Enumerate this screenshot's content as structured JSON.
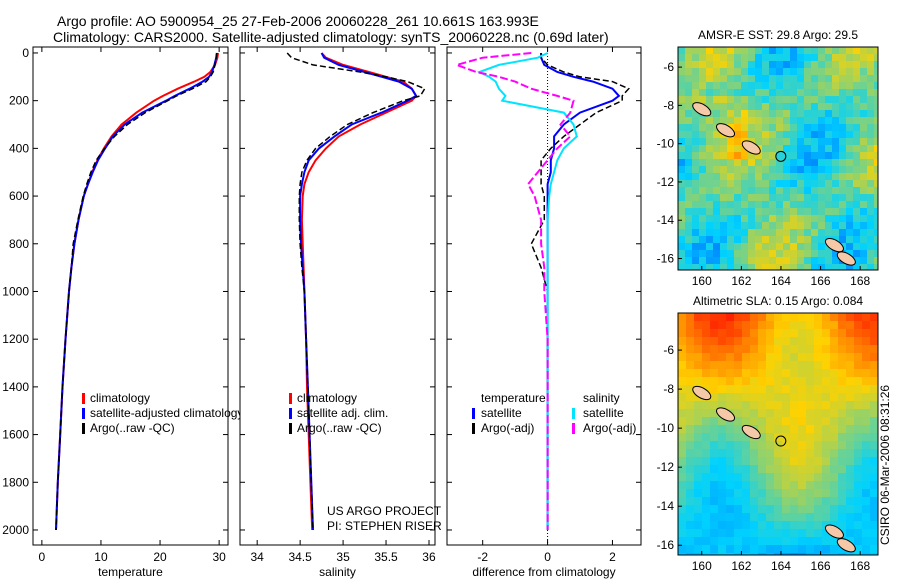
{
  "title": {
    "line1": "Argo profile: AO 5900954_25 27-Feb-2006 20060228_261 10.661S 163.993E",
    "line2": "Climatology: CARS2000. Satellite-adjusted climatology: synTS_20060228.nc (0.69d later)"
  },
  "footer": {
    "stamp": "CSIRO 06-Mar-2006 08:31:26",
    "project": "US ARGO PROJECT",
    "pi": "PI: STEPHEN RISER"
  },
  "colors": {
    "climatology": "#ff0000",
    "satellite": "#0000ff",
    "argo": "#000000",
    "sal_satellite": "#00e5ff",
    "sal_argo": "#ff00ff"
  },
  "chart_data": [
    {
      "type": "line",
      "title": "",
      "xlabel": "temperature",
      "ylabel": "",
      "xlim": [
        -1.5,
        31.5
      ],
      "ylim": [
        2063,
        -25
      ],
      "xticks": [
        0,
        10,
        20,
        30
      ],
      "yticks": [
        0,
        200,
        400,
        600,
        800,
        1000,
        1200,
        1400,
        1600,
        1800,
        2000
      ],
      "legend": [
        "climatology",
        "satellite-adjusted climatology",
        "Argo(..raw -QC)"
      ],
      "depth": [
        0,
        20,
        50,
        80,
        100,
        120,
        150,
        180,
        200,
        250,
        300,
        350,
        400,
        450,
        500,
        550,
        600,
        700,
        800,
        900,
        1000,
        1200,
        1400,
        1600,
        1800,
        2000
      ],
      "series": [
        {
          "name": "climatology",
          "values": [
            29.8,
            29.7,
            29.3,
            28.5,
            27.5,
            25.8,
            23,
            20.5,
            19,
            16,
            13.5,
            11.8,
            10.5,
            9.4,
            8.5,
            7.8,
            7.1,
            6.2,
            5.5,
            5,
            4.6,
            4,
            3.5,
            3.1,
            2.7,
            2.4
          ]
        },
        {
          "name": "satellite-adjusted climatology",
          "values": [
            29.6,
            29.5,
            29.2,
            28.8,
            28.3,
            27.2,
            25,
            22.5,
            21,
            17,
            14,
            12,
            10.7,
            9.5,
            8.6,
            7.8,
            7.1,
            6.2,
            5.5,
            5,
            4.6,
            4,
            3.5,
            3.1,
            2.7,
            2.4
          ]
        },
        {
          "name": "Argo(..raw -QC)",
          "values": [
            29.6,
            29.5,
            29.3,
            29,
            28.5,
            27.8,
            25.5,
            22.8,
            21.3,
            17.5,
            14.5,
            12.3,
            10.6,
            9.2,
            8.3,
            7.6,
            7,
            6.1,
            5.3,
            5,
            4.6,
            4,
            3.5,
            3.1,
            2.7,
            2.4
          ]
        }
      ]
    },
    {
      "type": "line",
      "xlabel": "salinity",
      "xlim": [
        33.8,
        36.07
      ],
      "ylim": [
        2063,
        -25
      ],
      "xticks": [
        34,
        34.5,
        35,
        35.5,
        36
      ],
      "legend": [
        "climatology",
        "satellite adj. clim.",
        "Argo(..raw -QC)"
      ],
      "depth": [
        0,
        20,
        50,
        80,
        100,
        120,
        150,
        180,
        200,
        250,
        300,
        350,
        400,
        450,
        500,
        550,
        600,
        700,
        800,
        900,
        1000,
        1200,
        1400,
        1600,
        1800,
        2000
      ],
      "series": [
        {
          "name": "climatology",
          "values": [
            34.75,
            34.8,
            35.0,
            35.3,
            35.5,
            35.7,
            35.8,
            35.85,
            35.8,
            35.5,
            35.2,
            34.95,
            34.8,
            34.68,
            34.6,
            34.55,
            34.53,
            34.52,
            34.53,
            34.54,
            34.55,
            34.57,
            34.58,
            34.6,
            34.62,
            34.64
          ]
        },
        {
          "name": "satellite adj. clim.",
          "values": [
            34.75,
            34.78,
            34.95,
            35.25,
            35.45,
            35.65,
            35.8,
            35.85,
            35.75,
            35.45,
            35.1,
            34.9,
            34.72,
            34.6,
            34.55,
            34.52,
            34.5,
            34.5,
            34.51,
            34.53,
            34.55,
            34.57,
            34.59,
            34.61,
            34.63,
            34.65
          ]
        },
        {
          "name": "Argo(..raw -QC)",
          "values": [
            34.35,
            34.4,
            34.65,
            35.2,
            35.5,
            35.75,
            35.95,
            35.9,
            35.7,
            35.35,
            35.05,
            34.85,
            34.68,
            34.58,
            34.52,
            34.5,
            34.49,
            34.49,
            34.5,
            34.52,
            34.55,
            34.57,
            34.59,
            34.61,
            34.63,
            34.65
          ]
        }
      ]
    },
    {
      "type": "line",
      "xlabel": "difference from climatology",
      "xlim": [
        -3.1,
        2.88
      ],
      "ylim": [
        2063,
        -25
      ],
      "xticks": [
        -2,
        0,
        2
      ],
      "legend_headers": [
        "temperature",
        "salinity"
      ],
      "legend": [
        "satellite",
        "Argo(-adj)",
        "satellite",
        "Argo(-adj)"
      ],
      "depth": [
        0,
        20,
        50,
        80,
        100,
        120,
        150,
        180,
        200,
        250,
        300,
        350,
        400,
        450,
        500,
        550,
        600,
        700,
        800,
        900,
        1000,
        1200,
        1400,
        1600,
        1800,
        2000
      ],
      "series": [
        {
          "name": "temperature satellite",
          "values": [
            -0.2,
            -0.2,
            -0.1,
            0.3,
            0.8,
            1.4,
            2.0,
            2.2,
            2.0,
            1.0,
            0.5,
            0.2,
            0.2,
            0.1,
            0.1,
            0,
            0,
            0,
            0,
            0,
            0,
            0,
            0,
            0,
            0,
            0
          ]
        },
        {
          "name": "temperature Argo(-adj)",
          "values": [
            -0.2,
            -0.2,
            0,
            0.5,
            1.0,
            2.0,
            2.5,
            2.3,
            2.3,
            1.5,
            1,
            0.5,
            0.1,
            -0.2,
            -0.2,
            -0.2,
            -0.1,
            -0.1,
            -0.5,
            -0.2,
            0,
            0,
            0,
            0,
            0,
            0
          ]
        },
        {
          "name": "salinity satellite",
          "values": [
            0,
            -0.3,
            -1.5,
            -2.1,
            -1.8,
            -1.6,
            -1.5,
            -1.3,
            -1.4,
            0.5,
            0.8,
            0.9,
            0.5,
            0.3,
            0.2,
            0.1,
            0.05,
            0,
            0,
            0,
            0,
            0,
            0,
            0,
            0,
            0
          ]
        },
        {
          "name": "salinity Argo(-adj)",
          "values": [
            -0.5,
            -2.0,
            -2.8,
            -2.2,
            -1.5,
            -1.0,
            -0.5,
            0.3,
            0.8,
            0.7,
            0.4,
            0.7,
            0.3,
            0,
            -0.3,
            -0.6,
            -0.4,
            -0.2,
            -0.2,
            -0.1,
            -0.1,
            0,
            0,
            0,
            0,
            0
          ]
        }
      ]
    },
    {
      "type": "heatmap",
      "title": "AMSR-E SST: 29.8 Argo: 29.5",
      "xlim": [
        158.8,
        168.9
      ],
      "ylim": [
        -16.6,
        -4.95
      ],
      "xticks": [
        160,
        162,
        164,
        166,
        168
      ],
      "yticks": [
        -6,
        -8,
        -10,
        -12,
        -14,
        -16
      ],
      "marker": [
        163.993,
        -10.661
      ]
    },
    {
      "type": "heatmap",
      "title": "Altimetric SLA: 0.15 Argo: 0.084",
      "xlim": [
        158.8,
        168.9
      ],
      "ylim": [
        -16.5,
        -4.1
      ],
      "xticks": [
        160,
        162,
        164,
        166,
        168
      ],
      "yticks": [
        -6,
        -8,
        -10,
        -12,
        -14,
        -16
      ],
      "marker": [
        163.993,
        -10.661
      ]
    }
  ]
}
